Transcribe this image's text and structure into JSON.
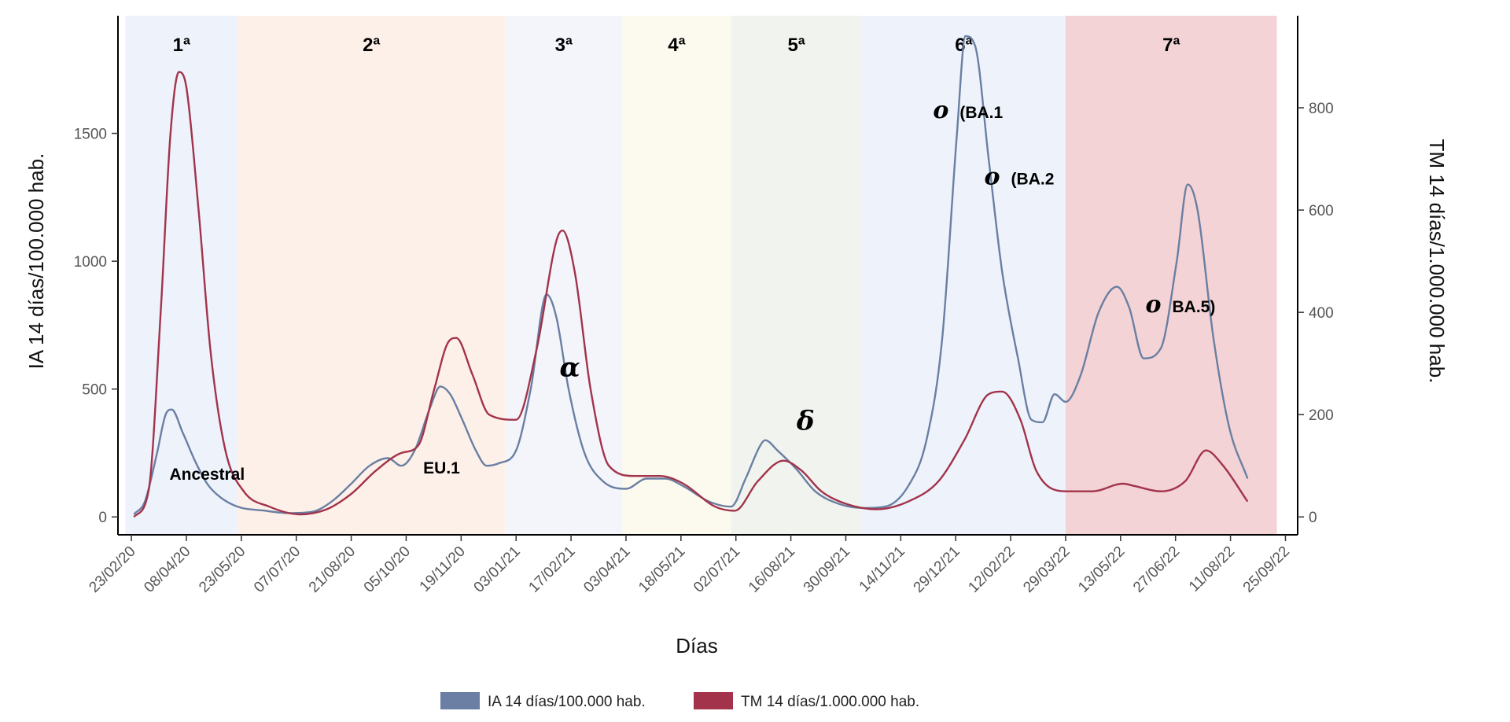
{
  "chart_data": {
    "type": "line",
    "xlabel": "Días",
    "ylabel_left": "IA 14 días/100.000 hab.",
    "ylabel_right": "TM 14 días/1.000.000 hab.",
    "x_range": [
      "2020-02-12",
      "2022-10-05"
    ],
    "y_left_range": [
      -70,
      1960
    ],
    "y_right_range": [
      -35,
      980
    ],
    "y_left_ticks": [
      0,
      500,
      1000,
      1500
    ],
    "y_right_ticks": [
      0,
      200,
      400,
      600,
      800
    ],
    "x_ticks": [
      "23/02/20",
      "08/04/20",
      "23/05/20",
      "07/07/20",
      "21/08/20",
      "05/10/20",
      "19/11/20",
      "03/01/21",
      "17/02/21",
      "03/04/21",
      "18/05/21",
      "02/07/21",
      "16/08/21",
      "30/09/21",
      "14/11/21",
      "29/12/21",
      "12/02/22",
      "29/03/22",
      "13/05/22",
      "27/06/22",
      "11/08/22",
      "25/09/22"
    ],
    "x_tick_dates": [
      "2020-02-23",
      "2020-04-08",
      "2020-05-23",
      "2020-07-07",
      "2020-08-21",
      "2020-10-05",
      "2020-11-19",
      "2021-01-03",
      "2021-02-17",
      "2021-04-03",
      "2021-05-18",
      "2021-07-02",
      "2021-08-16",
      "2021-09-30",
      "2021-11-14",
      "2021-12-29",
      "2022-02-12",
      "2022-03-29",
      "2022-05-13",
      "2022-06-27",
      "2022-08-11",
      "2022-09-25"
    ],
    "waves": [
      {
        "label": "1ª",
        "start": "2020-02-18",
        "end": "2020-05-20",
        "color": "#edf2fb"
      },
      {
        "label": "2ª",
        "start": "2020-05-20",
        "end": "2020-12-25",
        "color": "#fdf0e8"
      },
      {
        "label": "3ª",
        "start": "2020-12-25",
        "end": "2021-03-31",
        "color": "#f3f5fa"
      },
      {
        "label": "4ª",
        "start": "2021-03-31",
        "end": "2021-06-28",
        "color": "#fcfaee"
      },
      {
        "label": "5ª",
        "start": "2021-06-28",
        "end": "2021-10-13",
        "color": "#f1f4ee"
      },
      {
        "label": "6ª",
        "start": "2021-10-13",
        "end": "2022-03-29",
        "color": "#eef3fb"
      },
      {
        "label": "7ª",
        "start": "2022-03-29",
        "end": "2022-09-18",
        "color": "#f3d3d5"
      }
    ],
    "annotations": [
      {
        "text": "Ancestral",
        "x": "2020-04-25",
        "y_left": 145
      },
      {
        "text": "EU.1",
        "x": "2020-11-03",
        "y_left": 170
      },
      {
        "greek": "α",
        "text": "",
        "x": "2021-02-16",
        "y_left": 550
      },
      {
        "greek": "δ",
        "text": "",
        "x": "2021-08-28",
        "y_left": 340
      },
      {
        "greek": "o",
        "text": "(BA.1",
        "x": "2022-01-08",
        "y_left": 1560
      },
      {
        "greek": "o",
        "text": "(BA.2",
        "x": "2022-02-19",
        "y_left": 1300
      },
      {
        "greek": "o",
        "text": "BA.5)",
        "x": "2022-07-01",
        "y_left": 800
      }
    ],
    "series": [
      {
        "name": "IA 14 días/100.000 hab.",
        "axis": "left",
        "color": "#6a7fa3",
        "points": [
          [
            "2020-02-25",
            10
          ],
          [
            "2020-03-05",
            60
          ],
          [
            "2020-03-15",
            250
          ],
          [
            "2020-03-22",
            400
          ],
          [
            "2020-03-27",
            420
          ],
          [
            "2020-04-05",
            330
          ],
          [
            "2020-04-15",
            220
          ],
          [
            "2020-04-25",
            130
          ],
          [
            "2020-05-05",
            80
          ],
          [
            "2020-05-20",
            40
          ],
          [
            "2020-06-10",
            25
          ],
          [
            "2020-07-01",
            15
          ],
          [
            "2020-07-20",
            20
          ],
          [
            "2020-08-05",
            60
          ],
          [
            "2020-08-21",
            130
          ],
          [
            "2020-09-05",
            200
          ],
          [
            "2020-09-20",
            230
          ],
          [
            "2020-10-01",
            200
          ],
          [
            "2020-10-12",
            260
          ],
          [
            "2020-10-24",
            420
          ],
          [
            "2020-11-02",
            510
          ],
          [
            "2020-11-10",
            480
          ],
          [
            "2020-11-20",
            380
          ],
          [
            "2020-12-01",
            260
          ],
          [
            "2020-12-10",
            200
          ],
          [
            "2020-12-20",
            210
          ],
          [
            "2021-01-03",
            260
          ],
          [
            "2021-01-15",
            500
          ],
          [
            "2021-01-28",
            870
          ],
          [
            "2021-02-05",
            780
          ],
          [
            "2021-02-15",
            500
          ],
          [
            "2021-02-28",
            250
          ],
          [
            "2021-03-15",
            140
          ],
          [
            "2021-04-03",
            110
          ],
          [
            "2021-04-20",
            150
          ],
          [
            "2021-05-05",
            150
          ],
          [
            "2021-05-20",
            120
          ],
          [
            "2021-06-10",
            60
          ],
          [
            "2021-06-28",
            40
          ],
          [
            "2021-07-10",
            150
          ],
          [
            "2021-07-22",
            280
          ],
          [
            "2021-07-26",
            300
          ],
          [
            "2021-08-05",
            260
          ],
          [
            "2021-08-20",
            190
          ],
          [
            "2021-09-05",
            100
          ],
          [
            "2021-09-25",
            50
          ],
          [
            "2021-10-15",
            35
          ],
          [
            "2021-11-01",
            40
          ],
          [
            "2021-11-20",
            120
          ],
          [
            "2021-12-05",
            300
          ],
          [
            "2021-12-18",
            700
          ],
          [
            "2021-12-30",
            1500
          ],
          [
            "2022-01-06",
            1880
          ],
          [
            "2022-01-14",
            1840
          ],
          [
            "2022-01-25",
            1400
          ],
          [
            "2022-02-05",
            960
          ],
          [
            "2022-02-18",
            620
          ],
          [
            "2022-03-01",
            380
          ],
          [
            "2022-03-10",
            370
          ],
          [
            "2022-03-20",
            480
          ],
          [
            "2022-03-29",
            450
          ],
          [
            "2022-04-10",
            550
          ],
          [
            "2022-04-25",
            800
          ],
          [
            "2022-05-10",
            900
          ],
          [
            "2022-05-20",
            820
          ],
          [
            "2022-06-01",
            620
          ],
          [
            "2022-06-15",
            660
          ],
          [
            "2022-06-28",
            1000
          ],
          [
            "2022-07-07",
            1300
          ],
          [
            "2022-07-15",
            1200
          ],
          [
            "2022-07-28",
            700
          ],
          [
            "2022-08-10",
            350
          ],
          [
            "2022-08-25",
            150
          ]
        ]
      },
      {
        "name": "TM 14 días/1.000.000 hab.",
        "axis": "right",
        "color": "#a2334b",
        "points": [
          [
            "2020-02-25",
            0
          ],
          [
            "2020-03-08",
            50
          ],
          [
            "2020-03-18",
            400
          ],
          [
            "2020-03-26",
            750
          ],
          [
            "2020-04-02",
            870
          ],
          [
            "2020-04-08",
            840
          ],
          [
            "2020-04-18",
            600
          ],
          [
            "2020-04-28",
            320
          ],
          [
            "2020-05-10",
            130
          ],
          [
            "2020-05-25",
            50
          ],
          [
            "2020-06-15",
            20
          ],
          [
            "2020-07-10",
            5
          ],
          [
            "2020-08-01",
            15
          ],
          [
            "2020-08-21",
            45
          ],
          [
            "2020-09-10",
            90
          ],
          [
            "2020-10-01",
            125
          ],
          [
            "2020-10-15",
            140
          ],
          [
            "2020-10-28",
            250
          ],
          [
            "2020-11-08",
            340
          ],
          [
            "2020-11-15",
            350
          ],
          [
            "2020-11-28",
            280
          ],
          [
            "2020-12-12",
            200
          ],
          [
            "2021-01-03",
            190
          ],
          [
            "2021-01-20",
            330
          ],
          [
            "2021-02-05",
            540
          ],
          [
            "2021-02-10",
            560
          ],
          [
            "2021-02-20",
            480
          ],
          [
            "2021-03-05",
            250
          ],
          [
            "2021-03-20",
            100
          ],
          [
            "2021-04-10",
            80
          ],
          [
            "2021-05-01",
            80
          ],
          [
            "2021-05-20",
            65
          ],
          [
            "2021-06-15",
            20
          ],
          [
            "2021-07-01",
            12
          ],
          [
            "2021-07-20",
            70
          ],
          [
            "2021-08-10",
            110
          ],
          [
            "2021-08-25",
            90
          ],
          [
            "2021-09-10",
            50
          ],
          [
            "2021-10-01",
            25
          ],
          [
            "2021-10-25",
            15
          ],
          [
            "2021-11-20",
            30
          ],
          [
            "2021-12-15",
            70
          ],
          [
            "2022-01-05",
            150
          ],
          [
            "2022-01-25",
            240
          ],
          [
            "2022-02-05",
            245
          ],
          [
            "2022-02-20",
            190
          ],
          [
            "2022-03-05",
            90
          ],
          [
            "2022-03-29",
            50
          ],
          [
            "2022-04-20",
            50
          ],
          [
            "2022-05-15",
            65
          ],
          [
            "2022-05-25",
            60
          ],
          [
            "2022-06-15",
            50
          ],
          [
            "2022-07-05",
            70
          ],
          [
            "2022-07-22",
            130
          ],
          [
            "2022-08-05",
            100
          ],
          [
            "2022-08-25",
            30
          ]
        ]
      }
    ],
    "legend": {
      "placement": "bottom"
    },
    "grid": false
  }
}
